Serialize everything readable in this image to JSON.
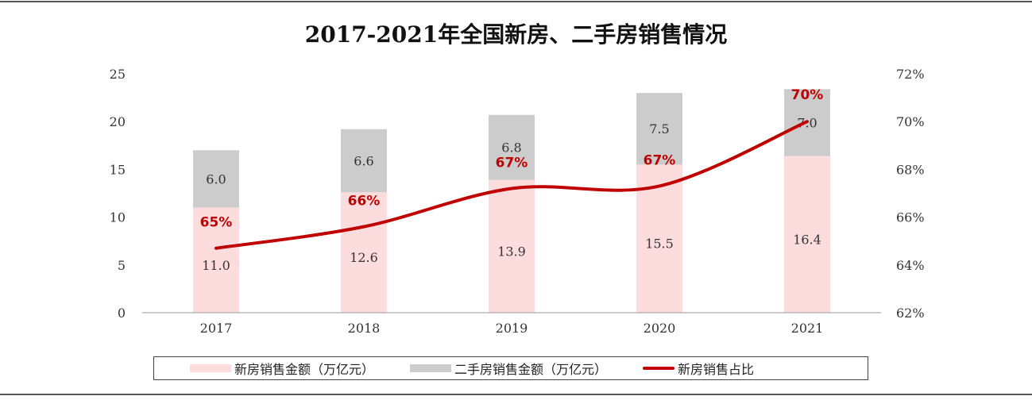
{
  "chart_data": {
    "type": "bar",
    "stacked": true,
    "title": "2017-2021年全国新房、二手房销售情况",
    "categories": [
      "2017",
      "2018",
      "2019",
      "2020",
      "2021"
    ],
    "series": [
      {
        "name": "新房销售金额（万亿元）",
        "type": "bar",
        "axis": "left",
        "values": [
          11.0,
          12.6,
          13.9,
          15.5,
          16.4
        ],
        "labels": [
          "11.0",
          "12.6",
          "13.9",
          "15.5",
          "16.4"
        ],
        "color": "#fddcdd"
      },
      {
        "name": "二手房销售金额（万亿元）",
        "type": "bar",
        "axis": "left",
        "values": [
          6.0,
          6.6,
          6.8,
          7.5,
          7.0
        ],
        "labels": [
          "6.0",
          "6.6",
          "6.8",
          "7.5",
          "7.0"
        ],
        "color": "#cccccc"
      },
      {
        "name": "新房销售占比",
        "type": "line",
        "axis": "right",
        "values": [
          64.7,
          65.6,
          67.2,
          67.3,
          70.0
        ],
        "labels": [
          "65%",
          "66%",
          "67%",
          "67%",
          "70%"
        ],
        "color": "#c00000"
      }
    ],
    "y_left": {
      "range": [
        0,
        25
      ],
      "ticks": [
        "0",
        "5",
        "10",
        "15",
        "20",
        "25"
      ]
    },
    "y_right": {
      "range": [
        62,
        72
      ],
      "ticks": [
        "62%",
        "64%",
        "66%",
        "68%",
        "70%",
        "72%"
      ]
    },
    "grid": false,
    "legend": "bottom"
  }
}
